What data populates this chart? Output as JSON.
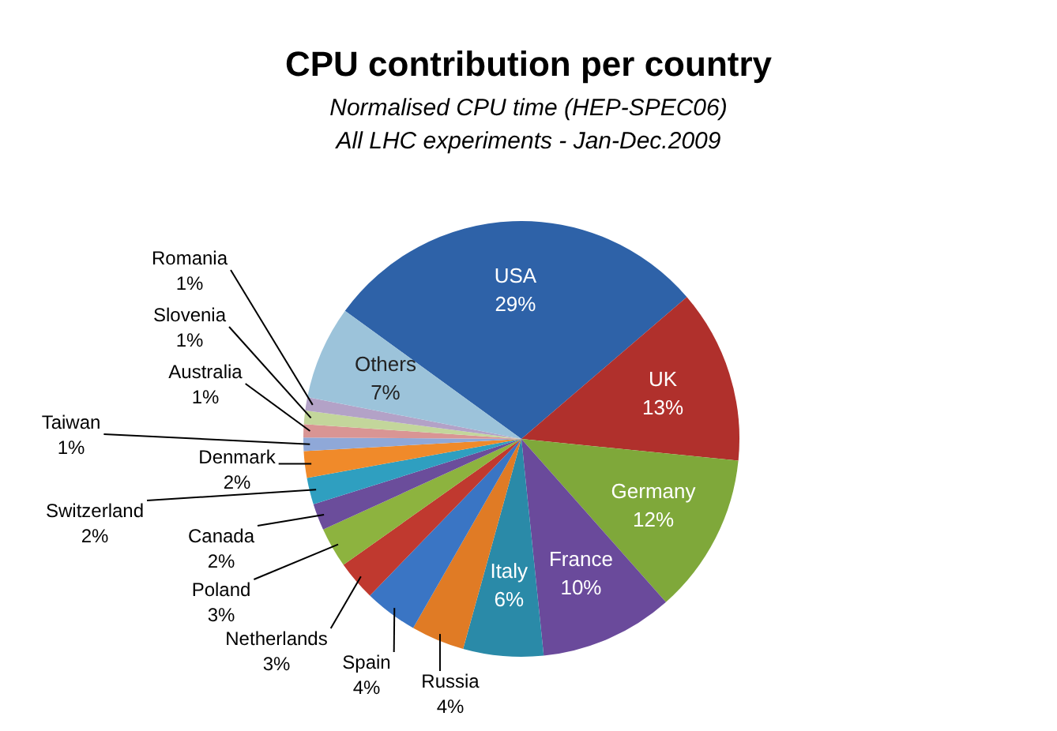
{
  "chart_data": {
    "type": "pie",
    "title": "CPU contribution per country",
    "subtitle": "Normalised CPU time (HEP-SPEC06)\nAll LHC experiments - Jan-Dec.2009",
    "categories": [
      "USA",
      "UK",
      "Germany",
      "France",
      "Italy",
      "Russia",
      "Spain",
      "Netherlands",
      "Poland",
      "Canada",
      "Switzerland",
      "Denmark",
      "Taiwan",
      "Australia",
      "Slovenia",
      "Romania",
      "Others"
    ],
    "values": [
      29,
      13,
      12,
      10,
      6,
      4,
      4,
      3,
      3,
      2,
      2,
      2,
      1,
      1,
      1,
      1,
      7
    ],
    "colors": [
      "#2e62a8",
      "#b0302c",
      "#7fa83a",
      "#6a4a9b",
      "#2a8aa8",
      "#e07b25",
      "#3a75c4",
      "#c0392f",
      "#8db33f",
      "#6b4d9b",
      "#2f9fc0",
      "#f08a2a",
      "#8fa8d8",
      "#d99594",
      "#c3d69b",
      "#b3a2c7",
      "#9cc3da"
    ],
    "value_labels": [
      "29%",
      "13%",
      "12%",
      "10%",
      "6%",
      "4%",
      "4%",
      "3%",
      "3%",
      "2%",
      "2%",
      "2%",
      "1%",
      "1%",
      "1%",
      "1%",
      "7%"
    ],
    "legend": false
  }
}
